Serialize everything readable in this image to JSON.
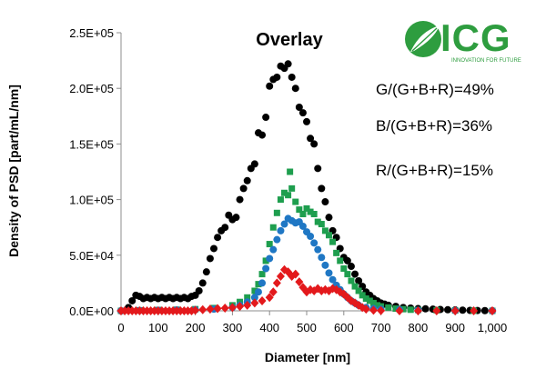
{
  "chart_data": {
    "type": "scatter",
    "title": "Overlay",
    "xlabel": "Diameter [nm]",
    "ylabel": "Density of PSD [part/mL/nm]",
    "xlim": [
      0,
      1000
    ],
    "ylim": [
      0,
      250000
    ],
    "x_ticks": [
      0,
      100,
      200,
      300,
      400,
      500,
      600,
      700,
      800,
      900,
      1000
    ],
    "x_tick_labels": [
      "0",
      "100",
      "200",
      "300",
      "400",
      "500",
      "600",
      "700",
      "800",
      "900",
      "1,000"
    ],
    "y_ticks": [
      0,
      50000,
      100000,
      150000,
      200000,
      250000
    ],
    "y_tick_labels": [
      "0.0E+00",
      "5.0E+04",
      "1.0E+05",
      "1.5E+05",
      "2.0E+05",
      "2.5E+05"
    ],
    "grid": false,
    "annotations": [
      "G/(G+B+R)=49%",
      "B/(G+B+R)=36%",
      "R/(G+B+R)=15%"
    ],
    "series": [
      {
        "color": "#000000",
        "marker": "circle",
        "points": [
          [
            0,
            0
          ],
          [
            20,
            3000
          ],
          [
            30,
            9000
          ],
          [
            40,
            14000
          ],
          [
            50,
            13000
          ],
          [
            60,
            11000
          ],
          [
            70,
            12000
          ],
          [
            80,
            11000
          ],
          [
            90,
            12000
          ],
          [
            100,
            11000
          ],
          [
            110,
            12000
          ],
          [
            120,
            11000
          ],
          [
            130,
            12000
          ],
          [
            140,
            11000
          ],
          [
            150,
            12000
          ],
          [
            160,
            11000
          ],
          [
            170,
            12000
          ],
          [
            180,
            11000
          ],
          [
            190,
            13000
          ],
          [
            200,
            14000
          ],
          [
            210,
            18000
          ],
          [
            220,
            25000
          ],
          [
            230,
            35000
          ],
          [
            240,
            47000
          ],
          [
            250,
            56000
          ],
          [
            260,
            66000
          ],
          [
            270,
            72000
          ],
          [
            280,
            75000
          ],
          [
            290,
            86000
          ],
          [
            300,
            82000
          ],
          [
            310,
            84000
          ],
          [
            320,
            100000
          ],
          [
            330,
            110000
          ],
          [
            340,
            117000
          ],
          [
            350,
            128000
          ],
          [
            360,
            132000
          ],
          [
            370,
            160000
          ],
          [
            380,
            158000
          ],
          [
            390,
            174000
          ],
          [
            400,
            202000
          ],
          [
            410,
            208000
          ],
          [
            420,
            210000
          ],
          [
            430,
            220000
          ],
          [
            440,
            218000
          ],
          [
            450,
            222000
          ],
          [
            460,
            210000
          ],
          [
            470,
            200000
          ],
          [
            480,
            183000
          ],
          [
            490,
            178000
          ],
          [
            500,
            170000
          ],
          [
            510,
            155000
          ],
          [
            520,
            150000
          ],
          [
            530,
            128000
          ],
          [
            540,
            110000
          ],
          [
            550,
            98000
          ],
          [
            560,
            84000
          ],
          [
            570,
            72000
          ],
          [
            580,
            66000
          ],
          [
            590,
            56000
          ],
          [
            600,
            48000
          ],
          [
            610,
            45000
          ],
          [
            620,
            40000
          ],
          [
            630,
            33000
          ],
          [
            640,
            27000
          ],
          [
            650,
            22000
          ],
          [
            660,
            17000
          ],
          [
            670,
            14000
          ],
          [
            680,
            11000
          ],
          [
            690,
            9000
          ],
          [
            700,
            7000
          ],
          [
            710,
            6000
          ],
          [
            720,
            5000
          ],
          [
            740,
            4000
          ],
          [
            760,
            3000
          ],
          [
            780,
            2500
          ],
          [
            800,
            2000
          ],
          [
            820,
            1800
          ],
          [
            840,
            1500
          ],
          [
            860,
            1200
          ],
          [
            880,
            1000
          ],
          [
            900,
            800
          ],
          [
            920,
            600
          ],
          [
            940,
            400
          ],
          [
            960,
            300
          ],
          [
            980,
            200
          ],
          [
            1000,
            100
          ]
        ]
      },
      {
        "color": "#1e9e4e",
        "marker": "square",
        "points": [
          [
            0,
            0
          ],
          [
            50,
            500
          ],
          [
            100,
            800
          ],
          [
            150,
            1000
          ],
          [
            200,
            1500
          ],
          [
            250,
            2500
          ],
          [
            300,
            5000
          ],
          [
            320,
            8000
          ],
          [
            340,
            12000
          ],
          [
            360,
            18000
          ],
          [
            370,
            24000
          ],
          [
            380,
            33000
          ],
          [
            390,
            45000
          ],
          [
            400,
            60000
          ],
          [
            410,
            75000
          ],
          [
            420,
            88000
          ],
          [
            430,
            100000
          ],
          [
            440,
            106000
          ],
          [
            450,
            104000
          ],
          [
            455,
            125000
          ],
          [
            460,
            110000
          ],
          [
            470,
            98000
          ],
          [
            480,
            91000
          ],
          [
            490,
            87000
          ],
          [
            500,
            92000
          ],
          [
            510,
            89000
          ],
          [
            520,
            87000
          ],
          [
            530,
            80000
          ],
          [
            540,
            78000
          ],
          [
            550,
            72000
          ],
          [
            560,
            68000
          ],
          [
            570,
            62000
          ],
          [
            580,
            52000
          ],
          [
            590,
            45000
          ],
          [
            600,
            38000
          ],
          [
            610,
            33000
          ],
          [
            620,
            27000
          ],
          [
            630,
            22000
          ],
          [
            640,
            18000
          ],
          [
            650,
            14000
          ],
          [
            660,
            11000
          ],
          [
            670,
            9000
          ],
          [
            680,
            7000
          ],
          [
            690,
            5000
          ],
          [
            700,
            4000
          ],
          [
            720,
            3000
          ],
          [
            740,
            2000
          ],
          [
            760,
            1500
          ],
          [
            780,
            1000
          ],
          [
            800,
            800
          ],
          [
            850,
            500
          ],
          [
            900,
            300
          ],
          [
            950,
            100
          ],
          [
            1000,
            0
          ]
        ]
      },
      {
        "color": "#1f77c4",
        "marker": "circle",
        "points": [
          [
            0,
            0
          ],
          [
            50,
            300
          ],
          [
            100,
            500
          ],
          [
            150,
            800
          ],
          [
            200,
            1000
          ],
          [
            250,
            1500
          ],
          [
            300,
            3000
          ],
          [
            320,
            5000
          ],
          [
            340,
            8000
          ],
          [
            360,
            12000
          ],
          [
            370,
            17000
          ],
          [
            380,
            25000
          ],
          [
            390,
            38000
          ],
          [
            400,
            47000
          ],
          [
            410,
            55000
          ],
          [
            420,
            64000
          ],
          [
            430,
            72000
          ],
          [
            440,
            78000
          ],
          [
            450,
            83000
          ],
          [
            460,
            81000
          ],
          [
            470,
            79000
          ],
          [
            480,
            80000
          ],
          [
            490,
            76000
          ],
          [
            500,
            71000
          ],
          [
            510,
            67000
          ],
          [
            520,
            61000
          ],
          [
            530,
            55000
          ],
          [
            540,
            48000
          ],
          [
            550,
            41000
          ],
          [
            560,
            34000
          ],
          [
            570,
            28000
          ],
          [
            580,
            23000
          ],
          [
            590,
            19000
          ],
          [
            600,
            15000
          ],
          [
            610,
            12000
          ],
          [
            620,
            9000
          ],
          [
            630,
            7000
          ],
          [
            640,
            5000
          ],
          [
            660,
            3000
          ],
          [
            680,
            2000
          ],
          [
            700,
            1500
          ],
          [
            750,
            1000
          ],
          [
            800,
            500
          ],
          [
            900,
            200
          ],
          [
            1000,
            0
          ]
        ]
      },
      {
        "color": "#e3191c",
        "marker": "diamond",
        "points": [
          [
            0,
            0
          ],
          [
            10,
            0
          ],
          [
            20,
            0
          ],
          [
            30,
            0
          ],
          [
            40,
            0
          ],
          [
            50,
            0
          ],
          [
            60,
            0
          ],
          [
            70,
            0
          ],
          [
            80,
            0
          ],
          [
            90,
            0
          ],
          [
            100,
            0
          ],
          [
            110,
            0
          ],
          [
            120,
            0
          ],
          [
            130,
            0
          ],
          [
            140,
            0
          ],
          [
            150,
            0
          ],
          [
            160,
            0
          ],
          [
            170,
            0
          ],
          [
            180,
            0
          ],
          [
            190,
            0
          ],
          [
            200,
            500
          ],
          [
            220,
            1000
          ],
          [
            240,
            1500
          ],
          [
            260,
            2000
          ],
          [
            280,
            2500
          ],
          [
            300,
            3000
          ],
          [
            320,
            4000
          ],
          [
            340,
            5000
          ],
          [
            360,
            7000
          ],
          [
            380,
            9000
          ],
          [
            400,
            12000
          ],
          [
            410,
            17000
          ],
          [
            420,
            25000
          ],
          [
            430,
            31000
          ],
          [
            440,
            37000
          ],
          [
            450,
            35000
          ],
          [
            460,
            31000
          ],
          [
            470,
            33000
          ],
          [
            480,
            26000
          ],
          [
            490,
            21000
          ],
          [
            500,
            17000
          ],
          [
            510,
            19000
          ],
          [
            520,
            18000
          ],
          [
            530,
            20000
          ],
          [
            540,
            18000
          ],
          [
            550,
            19000
          ],
          [
            560,
            18000
          ],
          [
            570,
            20000
          ],
          [
            580,
            19000
          ],
          [
            590,
            17000
          ],
          [
            600,
            15000
          ],
          [
            610,
            12000
          ],
          [
            620,
            9000
          ],
          [
            630,
            7000
          ],
          [
            640,
            5000
          ],
          [
            650,
            3000
          ],
          [
            660,
            1500
          ],
          [
            680,
            500
          ],
          [
            700,
            200
          ],
          [
            750,
            0
          ],
          [
            800,
            0
          ],
          [
            850,
            0
          ],
          [
            900,
            0
          ],
          [
            950,
            0
          ],
          [
            1000,
            0
          ]
        ]
      }
    ]
  },
  "logo": {
    "text": "ICG",
    "tagline": "INNOVATION FOR FUTURE",
    "color": "#2e9d3f"
  }
}
